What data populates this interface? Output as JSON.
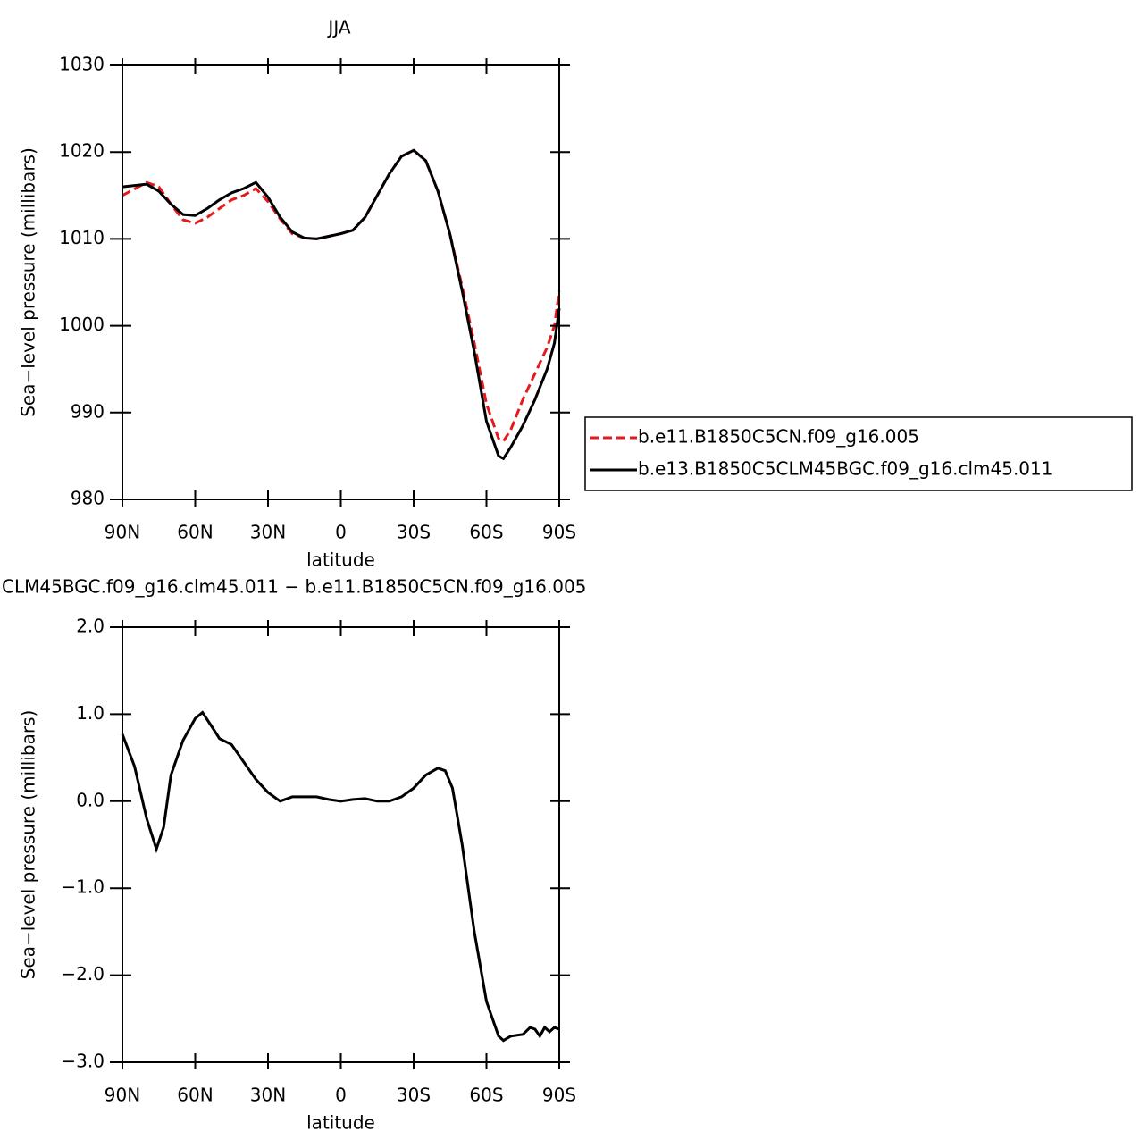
{
  "chart_data": [
    {
      "type": "line",
      "title": "JJA",
      "xlabel": "latitude",
      "ylabel": "Sea−level pressure (millibars)",
      "xlim": [
        90,
        -90
      ],
      "xticks": [
        {
          "value": 90,
          "label": "90N"
        },
        {
          "value": 60,
          "label": "60N"
        },
        {
          "value": 30,
          "label": "30N"
        },
        0,
        {
          "value": -30,
          "label": "30S"
        },
        {
          "value": -60,
          "label": "60S"
        },
        {
          "value": -90,
          "label": "90S"
        }
      ],
      "ylim": [
        980,
        1030
      ],
      "yticks": [
        980,
        990,
        1000,
        1010,
        1020,
        1030
      ],
      "legend": "right",
      "x": [
        90,
        80,
        75,
        70,
        65,
        60,
        55,
        50,
        45,
        40,
        35,
        30,
        25,
        20,
        15,
        10,
        5,
        0,
        -5,
        -10,
        -15,
        -20,
        -25,
        -30,
        -35,
        -40,
        -45,
        -50,
        -55,
        -60,
        -65,
        -67,
        -70,
        -75,
        -80,
        -85,
        -88,
        -90
      ],
      "series": [
        {
          "name": "b.e11.B1850C5CN.f09_g16.005",
          "color": "#e41a1c",
          "dash": true,
          "values": [
            1015,
            1016.5,
            1016,
            1014,
            1012.2,
            1011.8,
            1012.5,
            1013.5,
            1014.5,
            1015,
            1015.8,
            1014.3,
            1012.3,
            1010.6,
            1010.1,
            1010,
            1010.3,
            1010.6,
            1011,
            1012.5,
            1015,
            1017.5,
            1019.5,
            1020.2,
            1019,
            1015.5,
            1010.5,
            1004.5,
            998,
            991,
            987,
            986.7,
            988,
            991.5,
            994.5,
            997.5,
            1000,
            1004
          ]
        },
        {
          "name": "b.e13.B1850C5CLM45BGC.f09_g16.clm45.011",
          "color": "#000000",
          "dash": false,
          "values": [
            1016,
            1016.3,
            1015.5,
            1014,
            1012.8,
            1012.7,
            1013.5,
            1014.5,
            1015.3,
            1015.8,
            1016.5,
            1014.8,
            1012.5,
            1010.8,
            1010.1,
            1010,
            1010.3,
            1010.6,
            1011,
            1012.5,
            1015,
            1017.5,
            1019.5,
            1020.2,
            1019,
            1015.5,
            1010.5,
            1004,
            997,
            989,
            985,
            984.7,
            986,
            988.5,
            991.5,
            995,
            998,
            1002
          ]
        }
      ]
    },
    {
      "type": "line",
      "title": "CLM45BGC.f09_g16.clm45.011 − b.e11.B1850C5CN.f09_g16.005",
      "xlabel": "latitude",
      "ylabel": "Sea−level pressure (millibars)",
      "xlim": [
        90,
        -90
      ],
      "xticks": [
        {
          "value": 90,
          "label": "90N"
        },
        {
          "value": 60,
          "label": "60N"
        },
        {
          "value": 30,
          "label": "30N"
        },
        0,
        {
          "value": -30,
          "label": "30S"
        },
        {
          "value": -60,
          "label": "60S"
        },
        {
          "value": -90,
          "label": "90S"
        }
      ],
      "ylim": [
        -3,
        2
      ],
      "yticks": [
        {
          "value": -3,
          "label": "−3.0"
        },
        {
          "value": -2,
          "label": "−2.0"
        },
        {
          "value": -1,
          "label": "−1.0"
        },
        {
          "value": 0,
          "label": "0.0"
        },
        {
          "value": 1,
          "label": "1.0"
        },
        {
          "value": 2,
          "label": "2.0"
        }
      ],
      "x": [
        90,
        85,
        80,
        76,
        73,
        70,
        65,
        60,
        57,
        53,
        50,
        45,
        40,
        35,
        30,
        25,
        20,
        15,
        10,
        5,
        0,
        -5,
        -10,
        -15,
        -20,
        -25,
        -30,
        -35,
        -40,
        -43,
        -46,
        -50,
        -55,
        -60,
        -65,
        -67,
        -70,
        -75,
        -78,
        -80,
        -82,
        -84,
        -86,
        -88,
        -90
      ],
      "series": [
        {
          "color": "#000000",
          "dash": false,
          "values": [
            0.77,
            0.4,
            -0.2,
            -0.55,
            -0.3,
            0.3,
            0.7,
            0.95,
            1.02,
            0.85,
            0.72,
            0.65,
            0.45,
            0.25,
            0.1,
            0.0,
            0.05,
            0.05,
            0.05,
            0.02,
            0.0,
            0.02,
            0.03,
            0.0,
            0.0,
            0.05,
            0.15,
            0.3,
            0.38,
            0.35,
            0.15,
            -0.5,
            -1.5,
            -2.3,
            -2.7,
            -2.75,
            -2.7,
            -2.68,
            -2.6,
            -2.62,
            -2.7,
            -2.6,
            -2.65,
            -2.6,
            -2.62
          ]
        }
      ]
    }
  ]
}
